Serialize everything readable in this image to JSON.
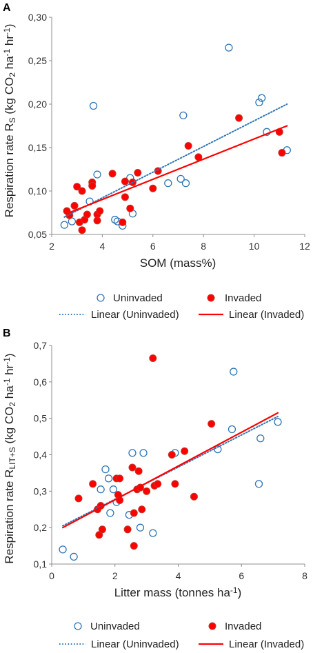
{
  "chart_data": [
    {
      "type": "scatter",
      "panel_label": "A",
      "xlabel": "SOM (mass%)",
      "ylabel_parts": [
        "Respiration rate R",
        "S",
        " (kg CO",
        "2",
        " ha",
        "-1",
        " hr",
        "-1",
        ")"
      ],
      "xlim": [
        2,
        12
      ],
      "ylim": [
        0.05,
        0.3
      ],
      "x_ticks": [
        2,
        4,
        6,
        8,
        10,
        12
      ],
      "x_tick_labels": [
        "2",
        "4",
        "6",
        "8",
        "10",
        "12"
      ],
      "y_ticks": [
        0.05,
        0.1,
        0.15,
        0.2,
        0.25,
        0.3
      ],
      "y_tick_labels": [
        "0,05",
        "0,10",
        "0,15",
        "0,20",
        "0,25",
        "0,30"
      ],
      "grid": false,
      "legend_position": "bottom",
      "series": [
        {
          "name": "Uninvaded",
          "marker": "open-circle",
          "color": "#2e75b6",
          "points": [
            [
              2.5,
              0.061
            ],
            [
              2.8,
              0.065
            ],
            [
              3.5,
              0.088
            ],
            [
              3.65,
              0.198
            ],
            [
              3.8,
              0.119
            ],
            [
              4.5,
              0.067
            ],
            [
              4.6,
              0.065
            ],
            [
              4.8,
              0.06
            ],
            [
              5.2,
              0.074
            ],
            [
              5.1,
              0.115
            ],
            [
              6.6,
              0.109
            ],
            [
              7.1,
              0.114
            ],
            [
              7.2,
              0.187
            ],
            [
              7.3,
              0.109
            ],
            [
              9.0,
              0.265
            ],
            [
              10.2,
              0.202
            ],
            [
              10.3,
              0.207
            ],
            [
              10.5,
              0.168
            ],
            [
              11.3,
              0.147
            ]
          ]
        },
        {
          "name": "Invaded",
          "marker": "filled-circle",
          "color": "#ff0000",
          "edge": "#c0392b",
          "points": [
            [
              2.6,
              0.077
            ],
            [
              2.7,
              0.072
            ],
            [
              2.9,
              0.083
            ],
            [
              3.0,
              0.105
            ],
            [
              3.1,
              0.064
            ],
            [
              3.2,
              0.055
            ],
            [
              3.2,
              0.1
            ],
            [
              3.3,
              0.067
            ],
            [
              3.4,
              0.073
            ],
            [
              3.6,
              0.11
            ],
            [
              3.6,
              0.106
            ],
            [
              3.8,
              0.073
            ],
            [
              3.8,
              0.066
            ],
            [
              3.9,
              0.077
            ],
            [
              4.4,
              0.12
            ],
            [
              4.8,
              0.064
            ],
            [
              4.9,
              0.111
            ],
            [
              4.9,
              0.093
            ],
            [
              5.1,
              0.08
            ],
            [
              5.2,
              0.11
            ],
            [
              5.4,
              0.121
            ],
            [
              6.0,
              0.103
            ],
            [
              6.2,
              0.123
            ],
            [
              7.4,
              0.152
            ],
            [
              7.8,
              0.139
            ],
            [
              9.4,
              0.184
            ],
            [
              11.0,
              0.168
            ],
            [
              11.1,
              0.144
            ]
          ]
        }
      ],
      "trendlines": [
        {
          "name": "Linear (Uninvaded)",
          "style": "dotted",
          "color": "#2e75b6",
          "x": [
            2.5,
            11.3
          ],
          "y": [
            0.07,
            0.2
          ]
        },
        {
          "name": "Linear (Invaded)",
          "style": "solid",
          "color": "#ff0000",
          "x": [
            2.6,
            11.3
          ],
          "y": [
            0.074,
            0.175
          ]
        }
      ]
    },
    {
      "type": "scatter",
      "panel_label": "B",
      "xlabel": "Litter mass (tonnes ha-1)",
      "ylabel_parts": [
        "Respiration rate R",
        "LIT+S",
        " (kg CO",
        "2",
        " ha",
        "-1",
        " hr",
        "-1",
        ")"
      ],
      "xlim": [
        0,
        8
      ],
      "ylim": [
        0.1,
        0.7
      ],
      "x_ticks": [
        0,
        2,
        4,
        6,
        8
      ],
      "x_tick_labels": [
        "0",
        "2",
        "4",
        "6",
        "8"
      ],
      "y_ticks": [
        0.1,
        0.2,
        0.3,
        0.4,
        0.5,
        0.6,
        0.7
      ],
      "y_tick_labels": [
        "0,1",
        "0,2",
        "0,3",
        "0,4",
        "0,5",
        "0,6",
        "0,7"
      ],
      "grid": false,
      "legend_position": "bottom",
      "series": [
        {
          "name": "Uninvaded",
          "marker": "open-circle",
          "color": "#2e75b6",
          "points": [
            [
              0.35,
              0.14
            ],
            [
              0.7,
              0.12
            ],
            [
              1.55,
              0.305
            ],
            [
              1.7,
              0.36
            ],
            [
              1.8,
              0.335
            ],
            [
              1.85,
              0.24
            ],
            [
              1.95,
              0.305
            ],
            [
              2.05,
              0.27
            ],
            [
              2.45,
              0.235
            ],
            [
              2.55,
              0.405
            ],
            [
              2.8,
              0.2
            ],
            [
              2.9,
              0.405
            ],
            [
              3.2,
              0.185
            ],
            [
              3.9,
              0.405
            ],
            [
              5.25,
              0.415
            ],
            [
              5.7,
              0.47
            ],
            [
              5.75,
              0.628
            ],
            [
              6.55,
              0.32
            ],
            [
              6.6,
              0.445
            ],
            [
              7.15,
              0.49
            ]
          ]
        },
        {
          "name": "Invaded",
          "marker": "filled-circle",
          "color": "#ff0000",
          "edge": "#c0392b",
          "points": [
            [
              0.85,
              0.28
            ],
            [
              1.3,
              0.32
            ],
            [
              1.45,
              0.25
            ],
            [
              1.5,
              0.18
            ],
            [
              1.55,
              0.26
            ],
            [
              1.6,
              0.195
            ],
            [
              2.05,
              0.335
            ],
            [
              2.1,
              0.29
            ],
            [
              2.15,
              0.275
            ],
            [
              2.15,
              0.335
            ],
            [
              2.4,
              0.195
            ],
            [
              2.55,
              0.365
            ],
            [
              2.6,
              0.24
            ],
            [
              2.6,
              0.15
            ],
            [
              2.7,
              0.305
            ],
            [
              2.75,
              0.355
            ],
            [
              2.8,
              0.31
            ],
            [
              2.85,
              0.25
            ],
            [
              3.0,
              0.3
            ],
            [
              3.2,
              0.665
            ],
            [
              3.25,
              0.315
            ],
            [
              3.35,
              0.32
            ],
            [
              3.8,
              0.4
            ],
            [
              3.9,
              0.32
            ],
            [
              4.2,
              0.41
            ],
            [
              4.5,
              0.285
            ],
            [
              5.05,
              0.485
            ]
          ]
        }
      ],
      "trendlines": [
        {
          "name": "Linear (Uninvaded)",
          "style": "dotted",
          "color": "#2e75b6",
          "x": [
            0.35,
            7.15
          ],
          "y": [
            0.205,
            0.505
          ]
        },
        {
          "name": "Linear (Invaded)",
          "style": "solid",
          "color": "#ff0000",
          "x": [
            0.35,
            7.15
          ],
          "y": [
            0.2,
            0.515
          ]
        }
      ]
    }
  ],
  "legend": {
    "uninvaded": "Uninvaded",
    "invaded": "Invaded",
    "linear_uninvaded": "Linear (Uninvaded)",
    "linear_invaded": "Linear (Invaded)"
  },
  "colors": {
    "uninvaded": "#2e75b6",
    "invaded": "#ff0000",
    "invaded_edge": "#c0392b",
    "axis": "#8c8c8c"
  }
}
